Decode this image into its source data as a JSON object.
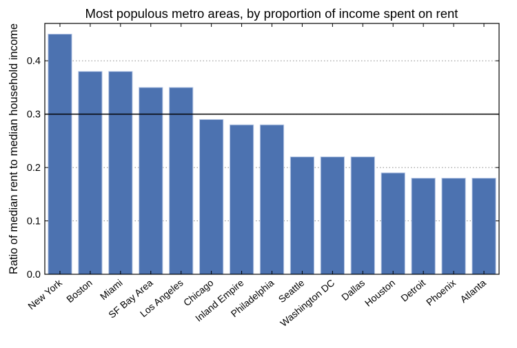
{
  "chart_data": {
    "type": "bar",
    "title": "Most populous metro areas, by proportion of income spent on rent",
    "xlabel": "",
    "ylabel": "Ratio of median rent to median household income",
    "categories": [
      "New York",
      "Boston",
      "Miami",
      "SF Bay Area",
      "Los Angeles",
      "Chicago",
      "Inland Empire",
      "Philadelphia",
      "Seattle",
      "Washington DC",
      "Dallas",
      "Houston",
      "Detroit",
      "Phoenix",
      "Atlanta"
    ],
    "values": [
      0.45,
      0.38,
      0.38,
      0.35,
      0.35,
      0.29,
      0.28,
      0.28,
      0.22,
      0.22,
      0.22,
      0.19,
      0.18,
      0.18,
      0.18
    ],
    "ylim": [
      0,
      0.47
    ],
    "yticks": [
      "0.0",
      "0.1",
      "0.2",
      "0.3",
      "0.4"
    ],
    "grid": "horizontal dotted",
    "reference_line": 0.3,
    "bar_color": "#4c72b0",
    "bar_edge_color": "#b8c8e6"
  }
}
